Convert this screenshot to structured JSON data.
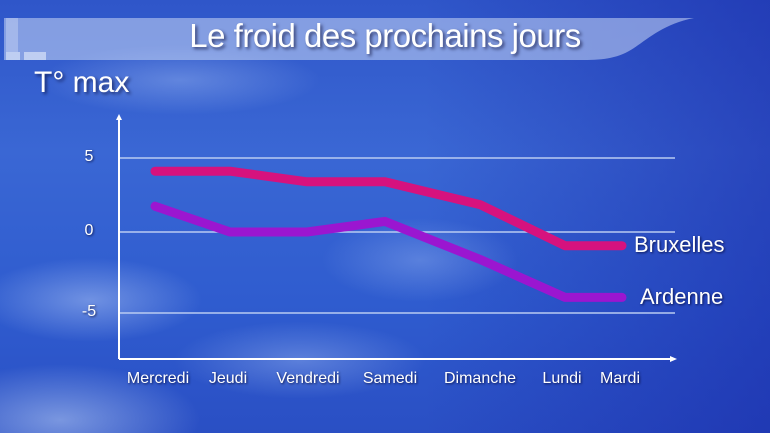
{
  "header": {
    "title": "Le froid des prochains jours",
    "subtitle": "T° max"
  },
  "colors": {
    "bruxelles": "#d6127e",
    "ardenne": "#9b16d0",
    "gridline": "#b9cbf2",
    "axis": "#ffffff"
  },
  "chart_data": {
    "type": "line",
    "title": "Le froid des prochains jours",
    "ylabel": "T° max",
    "xlabel": "",
    "categories": [
      "Mercredi",
      "Jeudi",
      "Vendredi",
      "Samedi",
      "Dimanche",
      "Lundi",
      "Mardi"
    ],
    "series": [
      {
        "name": "Bruxelles",
        "values": [
          4,
          4,
          3.3,
          3.3,
          1.8,
          -0.9,
          -0.9
        ]
      },
      {
        "name": "Ardenne",
        "values": [
          1.7,
          0,
          0,
          0.7,
          -1.8,
          -4.3,
          -4.3
        ]
      }
    ],
    "yticks": [
      5,
      0,
      -5
    ],
    "ylim": [
      -8,
      7.5
    ],
    "grid": true,
    "legend_position": "right-inline"
  },
  "axes": {
    "yticks": [
      "5",
      "0",
      "-5"
    ],
    "xticks": [
      "Mercredi",
      "Jeudi",
      "Vendredi",
      "Samedi",
      "Dimanche",
      "Lundi",
      "Mardi"
    ]
  },
  "legend": {
    "bruxelles": "Bruxelles",
    "ardenne": "Ardenne"
  }
}
